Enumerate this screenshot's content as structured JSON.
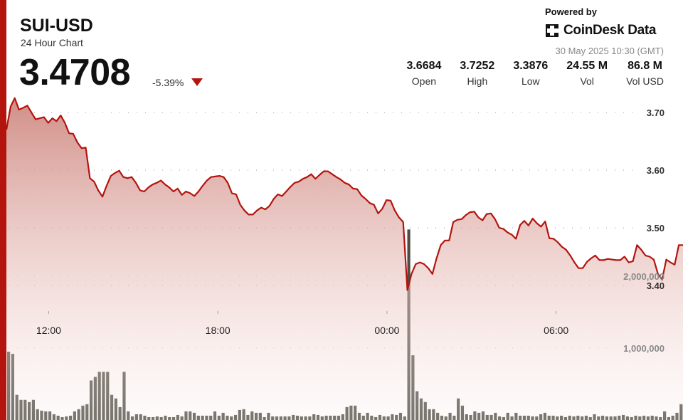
{
  "header": {
    "symbol": "SUI-USD",
    "subtitle": "24 Hour Chart",
    "price": "3.4708",
    "change": "-5.39%"
  },
  "brand": {
    "powered_by": "Powered by",
    "name": "CoinDesk Data",
    "timestamp": "30 May 2025 10:30 (GMT)"
  },
  "stats": [
    {
      "value": "3.6684",
      "label": "Open"
    },
    {
      "value": "3.7252",
      "label": "High"
    },
    {
      "value": "3.3876",
      "label": "Low"
    },
    {
      "value": "24.55 M",
      "label": "Vol"
    },
    {
      "value": "86.8 M",
      "label": "Vol USD"
    }
  ],
  "colors": {
    "accent": "#b3140e",
    "price_line": "#b3140e",
    "area_top": "#c97a72",
    "volume_bar": "#4d4d44"
  },
  "chart_data": {
    "type": "line",
    "title": "SUI-USD",
    "price_axis": {
      "ylim": [
        3.3,
        3.78
      ],
      "ticks": [
        "3.70",
        "3.60",
        "3.50",
        "3.40"
      ],
      "tick_values": [
        3.7,
        3.6,
        3.5,
        3.4
      ]
    },
    "time_axis": {
      "ticks": [
        "12:00",
        "18:00",
        "00:00",
        "06:00"
      ],
      "tick_hours": [
        1.5,
        7.5,
        13.5,
        19.5
      ],
      "range_hours": [
        0,
        24
      ]
    },
    "volume_axis": {
      "ylim": [
        0,
        2650000
      ],
      "ticks": [
        "2,000,000",
        "1,000,000"
      ],
      "tick_values": [
        2000000,
        1000000
      ]
    },
    "series": [
      {
        "values": [
          3.67,
          3.71,
          3.725,
          3.705,
          3.708,
          3.712,
          3.7,
          3.688,
          3.69,
          3.692,
          3.682,
          3.69,
          3.685,
          3.695,
          3.682,
          3.664,
          3.663,
          3.648,
          3.638,
          3.639,
          3.586,
          3.58,
          3.565,
          3.554,
          3.573,
          3.59,
          3.595,
          3.599,
          3.588,
          3.586,
          3.588,
          3.578,
          3.565,
          3.563,
          3.57,
          3.575,
          3.578,
          3.582,
          3.575,
          3.57,
          3.563,
          3.568,
          3.557,
          3.563,
          3.56,
          3.555,
          3.563,
          3.573,
          3.582,
          3.588,
          3.589,
          3.59,
          3.588,
          3.578,
          3.56,
          3.558,
          3.54,
          3.53,
          3.523,
          3.523,
          3.53,
          3.535,
          3.532,
          3.538,
          3.55,
          3.558,
          3.555,
          3.563,
          3.571,
          3.578,
          3.58,
          3.585,
          3.588,
          3.593,
          3.585,
          3.592,
          3.598,
          3.598,
          3.593,
          3.588,
          3.584,
          3.578,
          3.575,
          3.568,
          3.567,
          3.556,
          3.55,
          3.543,
          3.54,
          3.525,
          3.533,
          3.548,
          3.547,
          3.53,
          3.518,
          3.51,
          3.392,
          3.42,
          3.437,
          3.44,
          3.437,
          3.43,
          3.42,
          3.447,
          3.47,
          3.478,
          3.478,
          3.51,
          3.514,
          3.515,
          3.522,
          3.527,
          3.528,
          3.518,
          3.513,
          3.524,
          3.525,
          3.515,
          3.5,
          3.498,
          3.492,
          3.488,
          3.481,
          3.505,
          3.512,
          3.504,
          3.516,
          3.508,
          3.502,
          3.511,
          3.482,
          3.481,
          3.475,
          3.467,
          3.462,
          3.452,
          3.44,
          3.43,
          3.43,
          3.441,
          3.447,
          3.452,
          3.444,
          3.444,
          3.446,
          3.445,
          3.444,
          3.444,
          3.45,
          3.44,
          3.442,
          3.47,
          3.462,
          3.452,
          3.45,
          3.445,
          3.42,
          3.41,
          3.445,
          3.44,
          3.436,
          3.47,
          3.47
        ]
      }
    ],
    "volume": [
      0.95,
      0.92,
      0.35,
      0.28,
      0.28,
      0.25,
      0.28,
      0.15,
      0.13,
      0.12,
      0.12,
      0.08,
      0.06,
      0.04,
      0.05,
      0.06,
      0.12,
      0.15,
      0.2,
      0.22,
      0.55,
      0.6,
      0.67,
      0.67,
      0.67,
      0.35,
      0.3,
      0.18,
      0.67,
      0.12,
      0.05,
      0.08,
      0.08,
      0.06,
      0.04,
      0.04,
      0.05,
      0.04,
      0.06,
      0.04,
      0.04,
      0.07,
      0.05,
      0.12,
      0.12,
      0.1,
      0.06,
      0.06,
      0.06,
      0.06,
      0.12,
      0.06,
      0.1,
      0.06,
      0.05,
      0.07,
      0.14,
      0.15,
      0.07,
      0.12,
      0.1,
      0.1,
      0.04,
      0.1,
      0.05,
      0.05,
      0.05,
      0.05,
      0.05,
      0.07,
      0.06,
      0.05,
      0.05,
      0.05,
      0.08,
      0.07,
      0.05,
      0.06,
      0.06,
      0.06,
      0.06,
      0.08,
      0.18,
      0.2,
      0.2,
      0.1,
      0.06,
      0.1,
      0.06,
      0.04,
      0.07,
      0.05,
      0.05,
      0.08,
      0.07,
      0.1,
      0.05,
      2.65,
      0.9,
      0.4,
      0.3,
      0.25,
      0.15,
      0.15,
      0.1,
      0.06,
      0.05,
      0.1,
      0.06,
      0.3,
      0.2,
      0.08,
      0.07,
      0.12,
      0.1,
      0.12,
      0.07,
      0.07,
      0.1,
      0.05,
      0.04,
      0.1,
      0.05,
      0.1,
      0.06,
      0.06,
      0.06,
      0.05,
      0.05,
      0.08,
      0.1,
      0.06,
      0.06,
      0.05,
      0.06,
      0.04,
      0.06,
      0.05,
      0.06,
      0.05,
      0.06,
      0.04,
      0.08,
      0.05,
      0.06,
      0.05,
      0.05,
      0.05,
      0.06,
      0.07,
      0.05,
      0.04,
      0.06,
      0.05,
      0.06,
      0.05,
      0.06,
      0.05,
      0.04,
      0.12,
      0.04,
      0.06,
      0.1,
      0.22
    ]
  }
}
